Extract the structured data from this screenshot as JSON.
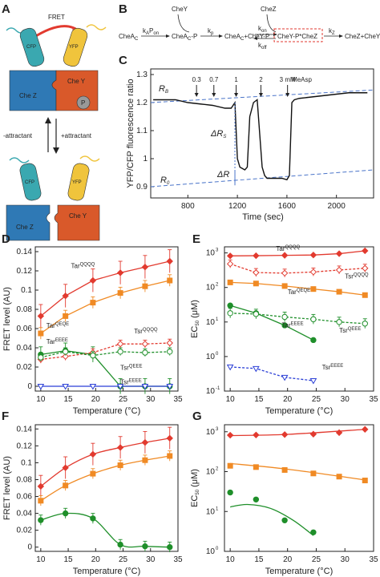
{
  "panels": {
    "a": "A",
    "b": "B",
    "c": "C",
    "d": "D",
    "e": "E",
    "f": "F",
    "g": "G"
  },
  "schematic": {
    "fret": "FRET",
    "cfp": "CFP",
    "yfp": "YFP",
    "chez": "Che Z",
    "chey": "Che Y",
    "p": "P",
    "minus_attractant": "-attractant",
    "plus_attractant": "+attractant"
  },
  "scheme": {
    "chey_top": "CheY",
    "chez_top": "CheZ",
    "chea": "CheA",
    "chea_sub": "C",
    "ka": "k",
    "ka_sub": "A",
    "pon": "P",
    "pon_sub": "on",
    "chea_p": "CheA",
    "chea_p_sub": "C",
    "chea_p_tail": "-P",
    "kp": "k",
    "kp_sub": "p",
    "chea2": "CheA",
    "chea2_sub": "C",
    "chea2_tail": "+CheY-P",
    "kon": "k",
    "kon_sub": "on",
    "koff": "k",
    "koff_sub": "off",
    "complex": "CheY-P*CheZ",
    "kz": "k",
    "kz_sub": "Z",
    "product": "CheZ+CheY"
  },
  "panel_c": {
    "ylabel": "YFP/CFP fluorescence ratio",
    "xlabel": "Time (sec)",
    "yticks": [
      "0.9",
      "1",
      "1.1",
      "1.2",
      "1.3"
    ],
    "xticks": [
      "800",
      "1200",
      "1600",
      "2000"
    ],
    "rb": "R",
    "rb_sub": "B",
    "r0": "R",
    "r0_sub": "0",
    "drs": "ΔR",
    "drs_sub": "S",
    "dr": "ΔR",
    "conc": [
      "0.3",
      "0.7",
      "1",
      "2",
      "3 mM"
    ],
    "measp": "MeAsp"
  },
  "panel_d": {
    "ylabel": "FRET level (AU)",
    "xlabel": "Temperature (°C)",
    "yticks": [
      "0",
      "0.02",
      "0.04",
      "0.06",
      "0.08",
      "0.1",
      "0.12",
      "0.14"
    ],
    "xticks": [
      "10",
      "15",
      "20",
      "25",
      "30",
      "35"
    ],
    "labels": {
      "tar_qqqq": "Tar",
      "tar_qqqq_sup": "QQQQ",
      "tar_qeqe": "Tar",
      "tar_qeqe_sup": "QEQE",
      "tar_eeee": "Tar",
      "tar_eeee_sup": "EEEE",
      "tsr_qqqq": "Tsr",
      "tsr_qqqq_sup": "QQQQ",
      "tsr_qeee": "Tsr",
      "tsr_qeee_sup": "QEEE",
      "tsr_eeee": "Tsr",
      "tsr_eeee_sup": "EEEE"
    }
  },
  "panel_e": {
    "ylabel": "EC",
    "ylabel_sub": "50",
    "ylabel_unit": "(μM)",
    "xlabel": "Temperature (°C)",
    "yticks": [
      "10",
      "10",
      "10",
      "10",
      "10"
    ],
    "ytick_exp": [
      "-1",
      "0",
      "1",
      "2",
      "3"
    ],
    "xticks": [
      "10",
      "15",
      "20",
      "25",
      "30",
      "35"
    ],
    "labels": {
      "tar_qqqq": "Tar",
      "tar_qqqq_sup": "QQQQ",
      "tsr_qqqq": "Tsr",
      "tsr_qqqq_sup": "QQQQ",
      "tar_qeqe": "Tar",
      "tar_qeqe_sup": "QEQE",
      "tar_eeee": "Tar",
      "tar_eeee_sup": "EEEE",
      "tsr_qeee": "Tsr",
      "tsr_qeee_sup": "QEEE",
      "tsr_eeee": "Tsr",
      "tsr_eeee_sup": "EEEE"
    }
  },
  "panel_f": {
    "ylabel": "FRET level (AU)",
    "xlabel": "Temperature (°C)",
    "yticks": [
      "0",
      "0.02",
      "0.04",
      "0.06",
      "0.08",
      "0.1",
      "0.12",
      "0.14"
    ],
    "xticks": [
      "10",
      "15",
      "20",
      "25",
      "30",
      "35"
    ]
  },
  "panel_g": {
    "ylabel": "EC",
    "ylabel_sub": "50",
    "ylabel_unit": "(μM)",
    "xlabel": "Temperature (°C)",
    "yticks": [
      "10",
      "10",
      "10",
      "10"
    ],
    "ytick_exp": [
      "0",
      "1",
      "2",
      "3"
    ],
    "xticks": [
      "10",
      "15",
      "20",
      "25",
      "30",
      "35"
    ]
  },
  "colors": {
    "red": "#e23a2f",
    "orange": "#f08a24",
    "green": "#1f8f2a",
    "blue": "#2b3fd6",
    "dash_blue": "#4a74c9",
    "cfp": "#3aa8b0",
    "yfp": "#f0c43c",
    "chez": "#2f79b5",
    "chey": "#d9592a"
  },
  "chart_data": [
    {
      "id": "C",
      "type": "line",
      "xlabel": "Time (sec)",
      "ylabel": "YFP/CFP fluorescence ratio",
      "xlim": [
        500,
        2300
      ],
      "ylim": [
        0.86,
        1.32
      ],
      "x": [
        520,
        700,
        800,
        900,
        1000,
        1100,
        1150,
        1180,
        1200,
        1220,
        1260,
        1280,
        1300,
        1330,
        1360,
        1400,
        1420,
        1440,
        1460,
        1500,
        1560,
        1600,
        1620,
        1640,
        1660,
        1700,
        1800,
        1900,
        2000,
        2100,
        2250
      ],
      "y": [
        1.21,
        1.21,
        1.2,
        1.195,
        1.19,
        1.18,
        1.18,
        1.2,
        1.0,
        0.97,
        0.96,
        0.97,
        1.15,
        1.2,
        1.21,
        0.97,
        0.94,
        0.93,
        0.93,
        0.93,
        0.93,
        0.925,
        0.94,
        1.2,
        1.21,
        1.215,
        1.22,
        1.225,
        1.23,
        1.235,
        1.235
      ]
    },
    {
      "id": "D",
      "type": "line",
      "xlabel": "Temperature (°C)",
      "ylabel": "FRET level (AU)",
      "xlim": [
        9,
        35
      ],
      "ylim": [
        -0.005,
        0.145
      ],
      "x": [
        10,
        14.5,
        19.5,
        24.5,
        29,
        33.5
      ],
      "series": [
        {
          "name": "TarQQQQ",
          "values": [
            0.073,
            0.094,
            0.11,
            0.118,
            0.124,
            0.13
          ]
        },
        {
          "name": "TarQEQE",
          "values": [
            0.055,
            0.073,
            0.087,
            0.097,
            0.104,
            0.11
          ]
        },
        {
          "name": "TarEEEE",
          "values": [
            0.033,
            0.037,
            0.033,
            0.0,
            0.0,
            0.0
          ]
        },
        {
          "name": "TsrQQQQ",
          "values": [
            0.028,
            0.031,
            0.035,
            0.044,
            0.044,
            0.045
          ]
        },
        {
          "name": "TsrQEEE",
          "values": [
            0.03,
            0.036,
            0.032,
            0.036,
            0.035,
            0.036
          ]
        },
        {
          "name": "TsrEEEE",
          "values": [
            0.0,
            0.0,
            0.0,
            0.0,
            0.0,
            0.0
          ]
        }
      ]
    },
    {
      "id": "E",
      "type": "line",
      "yscale": "log",
      "xlabel": "Temperature (°C)",
      "ylabel": "EC50 (μM)",
      "xlim": [
        9,
        35
      ],
      "ylim": [
        0.1,
        1500
      ],
      "series": [
        {
          "name": "TarQQQQ",
          "x": [
            10,
            14.5,
            19.5,
            24.5,
            29,
            33.5
          ],
          "values": [
            820,
            830,
            850,
            870,
            950,
            1150
          ]
        },
        {
          "name": "TsrQQQQ",
          "x": [
            10,
            14.5,
            19.5,
            24.5,
            29,
            33.5
          ],
          "values": [
            480,
            270,
            260,
            280,
            320,
            360
          ]
        },
        {
          "name": "TarQEQE",
          "x": [
            10,
            14.5,
            19.5,
            24.5,
            29,
            33.5
          ],
          "values": [
            140,
            130,
            110,
            90,
            75,
            60
          ]
        },
        {
          "name": "TarEEEE",
          "x": [
            10,
            14.5,
            19.5,
            24.5
          ],
          "values": [
            30,
            18,
            8,
            3
          ]
        },
        {
          "name": "TsrQEEE",
          "x": [
            10,
            14.5,
            19.5,
            24.5,
            29,
            33.5
          ],
          "values": [
            18,
            17,
            14,
            12,
            10,
            9
          ]
        },
        {
          "name": "TsrEEEE",
          "x": [
            10,
            14.5,
            19.5,
            24.5
          ],
          "values": [
            0.5,
            0.45,
            0.25,
            0.2
          ]
        }
      ]
    },
    {
      "id": "F",
      "type": "line",
      "xlabel": "Temperature (°C)",
      "ylabel": "FRET level (AU)",
      "xlim": [
        9,
        35
      ],
      "ylim": [
        -0.005,
        0.145
      ],
      "x": [
        10,
        14.5,
        19.5,
        24.5,
        29,
        33.5
      ],
      "series": [
        {
          "values": [
            0.072,
            0.094,
            0.11,
            0.118,
            0.124,
            0.129
          ]
        },
        {
          "values": [
            0.055,
            0.073,
            0.087,
            0.097,
            0.103,
            0.108
          ]
        },
        {
          "values": [
            0.032,
            0.04,
            0.034,
            0.003,
            0.001,
            0.0
          ]
        }
      ]
    },
    {
      "id": "G",
      "type": "scatter",
      "yscale": "log",
      "xlabel": "Temperature (°C)",
      "ylabel": "EC50 (μM)",
      "xlim": [
        9,
        35
      ],
      "ylim": [
        1,
        1500
      ],
      "series": [
        {
          "x": [
            10,
            14.5,
            19.5,
            24.5,
            29,
            33.5
          ],
          "values": [
            820,
            830,
            850,
            870,
            950,
            1150
          ]
        },
        {
          "x": [
            10,
            14.5,
            19.5,
            24.5,
            29,
            33.5
          ],
          "values": [
            140,
            130,
            110,
            90,
            75,
            60
          ]
        },
        {
          "x": [
            10,
            14.5,
            19.5,
            24.5
          ],
          "values": [
            30,
            20,
            6,
            3
          ]
        }
      ]
    }
  ]
}
